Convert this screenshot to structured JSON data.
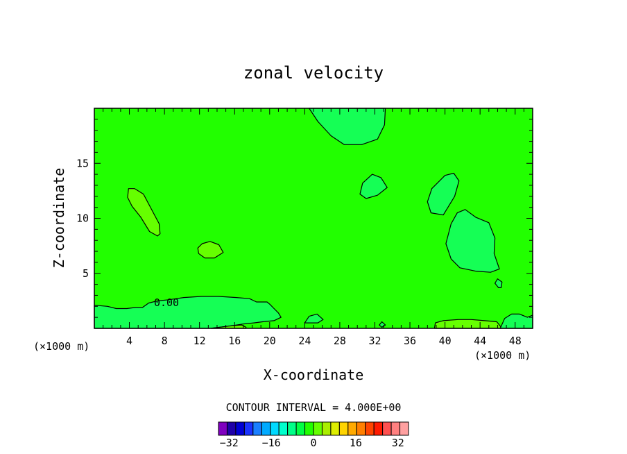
{
  "chart_data": {
    "type": "contour",
    "title": "zonal velocity",
    "xlabel": "X-coordinate",
    "ylabel": "Z-coordinate",
    "x_unit_left": "(×1000 m)",
    "x_unit_right": "(×1000 m)",
    "xlim": [
      0,
      50
    ],
    "ylim": [
      0,
      20
    ],
    "x_ticks": [
      4,
      8,
      12,
      16,
      20,
      24,
      28,
      32,
      36,
      40,
      44,
      48
    ],
    "x_tick_labels": [
      "4",
      "8",
      "12",
      "16",
      "20",
      "24",
      "28",
      "32",
      "36",
      "40",
      "44",
      "48"
    ],
    "y_ticks": [
      5,
      10,
      15
    ],
    "y_tick_labels": [
      "5",
      "10",
      "15"
    ],
    "contour_label": "0.00",
    "contour_interval_text": "CONTOUR INTERVAL = 4.000E+00",
    "background_color": "#22ff00",
    "colorbar": {
      "min": -36,
      "max": 36,
      "step": 4,
      "colors": [
        "#7f00bf",
        "#1e00a8",
        "#0000d4",
        "#1a33ff",
        "#1a7fff",
        "#00aaff",
        "#00d9ff",
        "#00ffcc",
        "#00ff88",
        "#00ff44",
        "#22ff00",
        "#66ff00",
        "#aaee00",
        "#ddee00",
        "#ffd400",
        "#ffaa00",
        "#ff7f00",
        "#ff4400",
        "#ff1a00",
        "#ff5050",
        "#ff8080",
        "#ffa0a0"
      ],
      "tick_values": [
        -32,
        -16,
        0,
        16,
        32
      ],
      "tick_labels": [
        "−32",
        "−16",
        "0",
        "16",
        "32"
      ]
    },
    "regions": [
      {
        "label": "top-center cell",
        "fill": "#15ff55",
        "pts": [
          [
            24.5,
            20
          ],
          [
            33.2,
            20
          ],
          [
            33.1,
            18.5
          ],
          [
            32.3,
            17.2
          ],
          [
            30.5,
            16.7
          ],
          [
            28.5,
            16.7
          ],
          [
            27,
            17.5
          ],
          [
            25.5,
            18.8
          ]
        ]
      },
      {
        "label": "mid cell 31,13",
        "fill": "#15ff55",
        "pts": [
          [
            30.3,
            12.2
          ],
          [
            30.6,
            13.2
          ],
          [
            31.7,
            14
          ],
          [
            32.7,
            13.7
          ],
          [
            33.4,
            12.8
          ],
          [
            32.3,
            12.1
          ],
          [
            31,
            11.8
          ]
        ]
      },
      {
        "label": "cell 41,12",
        "fill": "#15ff55",
        "pts": [
          [
            38,
            11.5
          ],
          [
            38.5,
            12.7
          ],
          [
            40,
            13.9
          ],
          [
            41,
            14.1
          ],
          [
            41.6,
            13.4
          ],
          [
            41.1,
            12
          ],
          [
            39.8,
            10.3
          ],
          [
            38.4,
            10.5
          ]
        ]
      },
      {
        "label": "large right cell",
        "fill": "#15ff55",
        "pts": [
          [
            40.7,
            9.5
          ],
          [
            41.4,
            10.5
          ],
          [
            42.3,
            10.8
          ],
          [
            43.5,
            10.1
          ],
          [
            45,
            9.6
          ],
          [
            45.7,
            8.2
          ],
          [
            45.6,
            6.8
          ],
          [
            46.2,
            5.4
          ],
          [
            45.2,
            5.1
          ],
          [
            43.5,
            5.2
          ],
          [
            41.7,
            5.5
          ],
          [
            40.7,
            6.3
          ],
          [
            40.1,
            7.7
          ]
        ]
      },
      {
        "label": "small right cell",
        "fill": "#15ff55",
        "pts": [
          [
            45.7,
            4.1
          ],
          [
            46,
            4.5
          ],
          [
            46.5,
            4.2
          ],
          [
            46.4,
            3.7
          ],
          [
            46.1,
            3.7
          ]
        ]
      },
      {
        "label": "left weak max",
        "fill": "#66ff00",
        "pts": [
          [
            3.9,
            12.7
          ],
          [
            4.6,
            12.7
          ],
          [
            5.6,
            12.2
          ],
          [
            6.6,
            10.7
          ],
          [
            7.4,
            9.5
          ],
          [
            7.5,
            8.6
          ],
          [
            7.2,
            8.4
          ],
          [
            6.3,
            8.8
          ],
          [
            5.3,
            10.1
          ],
          [
            4.3,
            11.1
          ],
          [
            3.8,
            11.9
          ]
        ]
      },
      {
        "label": "small weak max",
        "fill": "#66ff00",
        "pts": [
          [
            11.8,
            7.3
          ],
          [
            12.3,
            7.7
          ],
          [
            13.2,
            7.9
          ],
          [
            14.2,
            7.6
          ],
          [
            14.7,
            6.9
          ],
          [
            13.7,
            6.4
          ],
          [
            12.6,
            6.4
          ],
          [
            11.9,
            6.8
          ]
        ]
      },
      {
        "label": "bottom-left cell",
        "fill": "#15ff55",
        "pts": [
          [
            0,
            0
          ],
          [
            0,
            2.1
          ],
          [
            1.5,
            2
          ],
          [
            2.5,
            1.8
          ],
          [
            3.7,
            1.8
          ],
          [
            4.7,
            1.9
          ],
          [
            5.5,
            1.9
          ],
          [
            6.2,
            2.3
          ],
          [
            7.2,
            2.5
          ],
          [
            8.5,
            2.6
          ],
          [
            10.2,
            2.8
          ],
          [
            12.2,
            2.9
          ],
          [
            14.2,
            2.9
          ],
          [
            16.2,
            2.8
          ],
          [
            17.7,
            2.7
          ],
          [
            18.5,
            2.4
          ],
          [
            19.7,
            2.4
          ],
          [
            20,
            2.2
          ],
          [
            20.5,
            1.8
          ],
          [
            21,
            1.4
          ],
          [
            21.3,
            1
          ],
          [
            20.5,
            0.7
          ],
          [
            19.2,
            0.6
          ],
          [
            18.2,
            0.5
          ],
          [
            17,
            0.4
          ],
          [
            15.3,
            0.2
          ],
          [
            13.2,
            0
          ]
        ]
      },
      {
        "label": "bottom weak max",
        "fill": "#66ff00",
        "pts": [
          [
            13.3,
            0
          ],
          [
            15.3,
            0.2
          ],
          [
            16.8,
            0.3
          ],
          [
            17.3,
            0.1
          ],
          [
            17.3,
            0
          ]
        ]
      },
      {
        "label": "bottom weak max right",
        "fill": "#66ff00",
        "pts": [
          [
            38.8,
            0
          ],
          [
            38.9,
            0.5
          ],
          [
            39.8,
            0.7
          ],
          [
            41.5,
            0.8
          ],
          [
            43,
            0.8
          ],
          [
            44.5,
            0.7
          ],
          [
            45.9,
            0.6
          ],
          [
            46.4,
            0.1
          ],
          [
            46.4,
            0
          ]
        ]
      },
      {
        "label": "bottom-right cell",
        "fill": "#15ff55",
        "pts": [
          [
            46.3,
            0
          ],
          [
            46.8,
            0.9
          ],
          [
            47.6,
            1.3
          ],
          [
            48.5,
            1.3
          ],
          [
            49.4,
            1
          ],
          [
            50,
            1.2
          ],
          [
            50,
            0
          ]
        ]
      },
      {
        "label": "bottom blob 24",
        "fill": "#15ff55",
        "pts": [
          [
            24,
            0.5
          ],
          [
            24.5,
            1.1
          ],
          [
            25.4,
            1.3
          ],
          [
            26.1,
            0.8
          ],
          [
            25.5,
            0.5
          ]
        ]
      },
      {
        "label": "bottom blob 32",
        "fill": "#15ff55",
        "pts": [
          [
            32.5,
            0.3
          ],
          [
            32.8,
            0.6
          ],
          [
            33.2,
            0.3
          ],
          [
            32.8,
            0.1
          ]
        ]
      }
    ]
  }
}
